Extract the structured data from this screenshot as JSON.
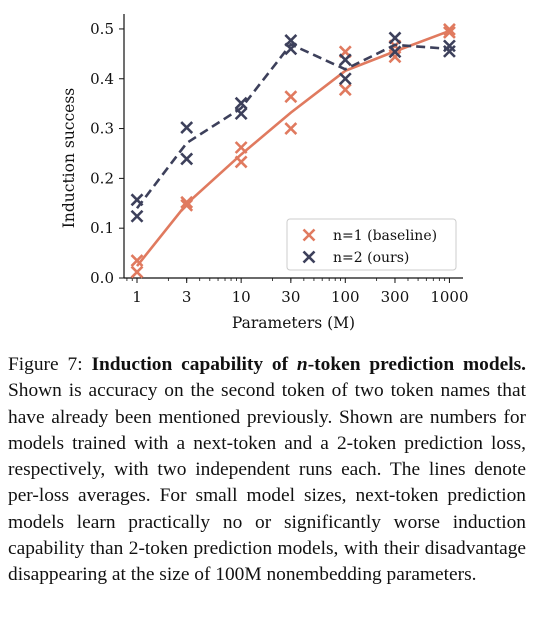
{
  "chart_data": {
    "type": "scatter",
    "xlabel": "Parameters (M)",
    "ylabel": "Induction success",
    "xscale": "log",
    "xlim": [
      0.75,
      1350
    ],
    "ylim": [
      0.0,
      0.53
    ],
    "xticks": [
      1,
      3,
      10,
      30,
      100,
      300,
      1000
    ],
    "xtick_labels": [
      "1",
      "3",
      "10",
      "30",
      "100",
      "300",
      "1000"
    ],
    "yticks": [
      0.0,
      0.1,
      0.2,
      0.3,
      0.4,
      0.5
    ],
    "ytick_labels": [
      "0.0",
      "0.1",
      "0.2",
      "0.3",
      "0.4",
      "0.5"
    ],
    "legend_position": "lower-right",
    "series": [
      {
        "name": "n=1 (baseline)",
        "color": "#E07A5F",
        "line_style": "solid",
        "runs": [
          {
            "x": [
              1,
              3,
              10,
              30,
              100,
              300,
              1000
            ],
            "y": [
              0.035,
              0.152,
              0.262,
              0.364,
              0.454,
              0.444,
              0.499
            ]
          },
          {
            "x": [
              1,
              3,
              10,
              30,
              100,
              300,
              1000
            ],
            "y": [
              0.012,
              0.146,
              0.233,
              0.3,
              0.378,
              0.466,
              0.493
            ]
          }
        ],
        "average": {
          "x": [
            1,
            3,
            10,
            30,
            100,
            300,
            1000
          ],
          "y": [
            0.024,
            0.149,
            0.248,
            0.332,
            0.416,
            0.455,
            0.496
          ]
        }
      },
      {
        "name": "n=2 (ours)",
        "color": "#3D405B",
        "line_style": "dashed",
        "runs": [
          {
            "x": [
              1,
              3,
              10,
              30,
              100,
              300,
              1000
            ],
            "y": [
              0.157,
              0.302,
              0.351,
              0.477,
              0.4,
              0.482,
              0.466
            ]
          },
          {
            "x": [
              1,
              3,
              10,
              30,
              100,
              300,
              1000
            ],
            "y": [
              0.124,
              0.239,
              0.33,
              0.46,
              0.438,
              0.454,
              0.455
            ]
          }
        ],
        "average": {
          "x": [
            1,
            3,
            10,
            30,
            100,
            300,
            1000
          ],
          "y": [
            0.14,
            0.271,
            0.341,
            0.469,
            0.419,
            0.468,
            0.46
          ]
        }
      }
    ]
  },
  "caption": {
    "figure_label": "Figure 7: ",
    "title_part1": "Induction capability of ",
    "title_math": "n",
    "title_part2": "-token prediction models.",
    "body": " Shown is accuracy on the second token of two token names that have already been mentioned previously. Shown are numbers for models trained with a next-token and a 2-token prediction loss, respectively, with two independent runs each. The lines denote per-loss averages. For small model sizes, next-token prediction models learn practically no or significantly worse induction capability than 2-token prediction models, with their disadvantage disappearing at the size of 100M nonembedding parameters."
  }
}
